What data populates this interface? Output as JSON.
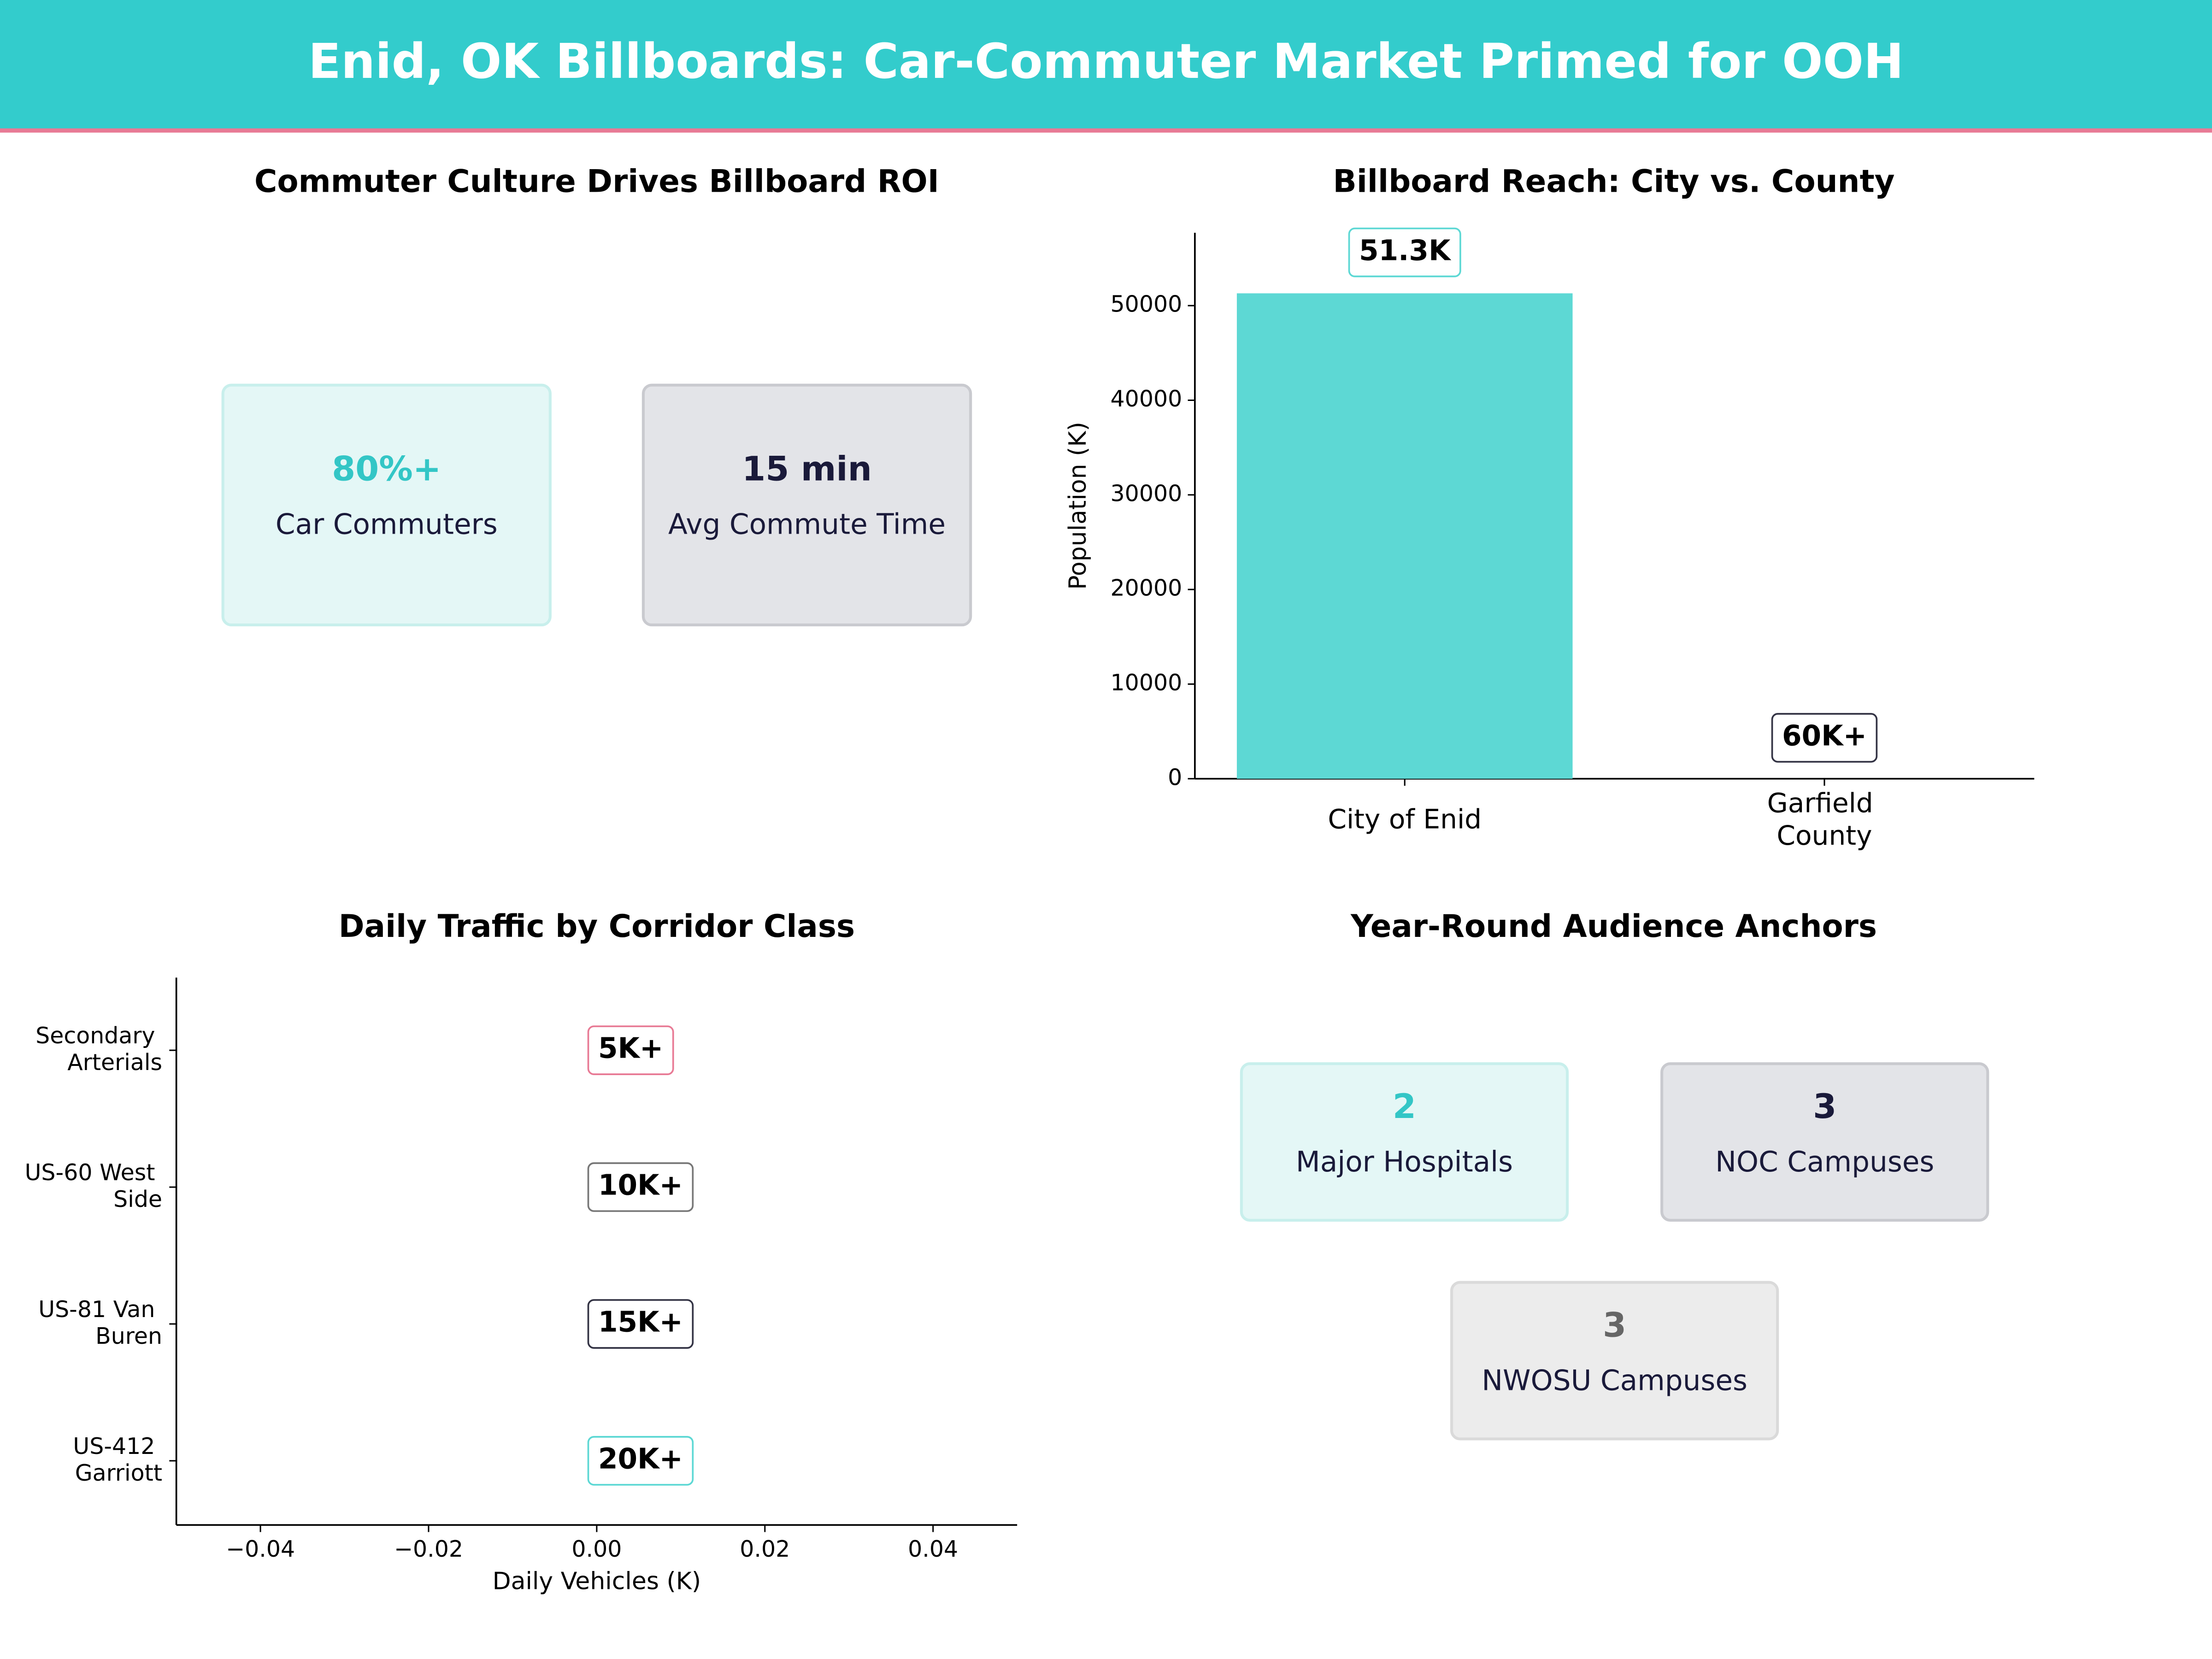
{
  "title": "Enid, OK Billboards: Car-Commuter Market Primed for OOH",
  "chart_data": [
    {
      "type": "kpi",
      "title": "Commuter Culture Drives Billboard ROI",
      "cards": [
        {
          "value": "80%+",
          "label": "Car Commuters",
          "color": "#33c6c6",
          "fill": "#e4f7f6",
          "border": "#c8efec"
        },
        {
          "value": "15 min",
          "label": "Avg Commute Time",
          "color": "#1a1a3a",
          "fill": "#e3e4e8",
          "border": "#c9cacf"
        }
      ]
    },
    {
      "type": "bar",
      "title": "Billboard Reach: City vs. County",
      "ylabel": "Population (K)",
      "categories": [
        "City of Enid",
        "Garfield County"
      ],
      "values": [
        51300,
        null
      ],
      "value_labels": [
        "51.3K",
        "60K+"
      ],
      "color": "#5dd8d4",
      "label_colors": [
        "#5dd8d4",
        "#333344"
      ],
      "ylim": [
        0,
        57700
      ],
      "yticks": [
        0,
        10000,
        20000,
        30000,
        40000,
        50000
      ]
    },
    {
      "type": "barh",
      "title": "Daily Traffic by Corridor Class",
      "xlabel": "Daily Vehicles (K)",
      "categories": [
        "US-412 Garriott",
        "US-81 Van Buren",
        "US-60 West Side",
        "Secondary Arterials"
      ],
      "values": [
        null,
        null,
        null,
        null
      ],
      "value_labels": [
        "20K+",
        "15K+",
        "10K+",
        "5K+"
      ],
      "label_colors": [
        "#5dd8d4",
        "#333344",
        "#777777",
        "#e87a95"
      ],
      "xlim": [
        -0.05,
        0.05
      ],
      "xticks": [
        {
          "value": -0.04,
          "label": "−0.04"
        },
        {
          "value": -0.02,
          "label": "−0.02"
        },
        {
          "value": 0,
          "label": "0.00"
        },
        {
          "value": 0.02,
          "label": "0.02"
        },
        {
          "value": 0.04,
          "label": "0.04"
        }
      ]
    },
    {
      "type": "kpi",
      "title": "Year-Round Audience Anchors",
      "cards": [
        {
          "value": "2",
          "label": "Major Hospitals",
          "color": "#33c6c6",
          "fill": "#e4f7f6",
          "border": "#c8efec"
        },
        {
          "value": "3",
          "label": "NOC Campuses",
          "color": "#1a1a3a",
          "fill": "#e3e4e8",
          "border": "#c9cacf"
        },
        {
          "value": "3",
          "label": "NWOSU Campuses",
          "color": "#666666",
          "fill": "#ececec",
          "border": "#dadada"
        }
      ]
    }
  ]
}
